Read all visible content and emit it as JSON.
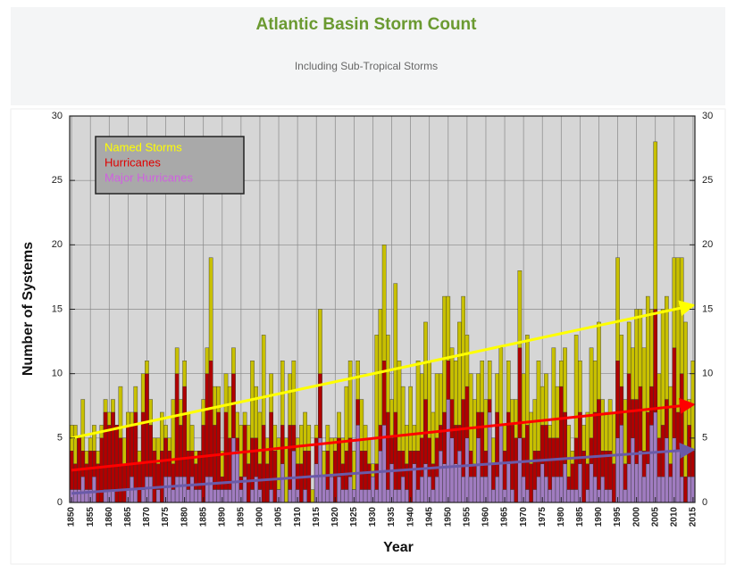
{
  "chart_data": {
    "type": "bar",
    "title": "Atlantic Basin Storm Count",
    "subtitle": "Including Sub-Tropical Storms",
    "x_label": "Year",
    "y_label": "Number of Systems",
    "x": [
      1850,
      1851,
      1852,
      1853,
      1854,
      1855,
      1856,
      1857,
      1858,
      1859,
      1860,
      1861,
      1862,
      1863,
      1864,
      1865,
      1866,
      1867,
      1868,
      1869,
      1870,
      1871,
      1872,
      1873,
      1874,
      1875,
      1876,
      1877,
      1878,
      1879,
      1880,
      1881,
      1882,
      1883,
      1884,
      1885,
      1886,
      1887,
      1888,
      1889,
      1890,
      1891,
      1892,
      1893,
      1894,
      1895,
      1896,
      1897,
      1898,
      1899,
      1900,
      1901,
      1902,
      1903,
      1904,
      1905,
      1906,
      1907,
      1908,
      1909,
      1910,
      1911,
      1912,
      1913,
      1914,
      1915,
      1916,
      1917,
      1918,
      1919,
      1920,
      1921,
      1922,
      1923,
      1924,
      1925,
      1926,
      1927,
      1928,
      1929,
      1930,
      1931,
      1932,
      1933,
      1934,
      1935,
      1936,
      1937,
      1938,
      1939,
      1940,
      1941,
      1942,
      1943,
      1944,
      1945,
      1946,
      1947,
      1948,
      1949,
      1950,
      1951,
      1952,
      1953,
      1954,
      1955,
      1956,
      1957,
      1958,
      1959,
      1960,
      1961,
      1962,
      1963,
      1964,
      1965,
      1966,
      1967,
      1968,
      1969,
      1970,
      1971,
      1972,
      1973,
      1974,
      1975,
      1976,
      1977,
      1978,
      1979,
      1980,
      1981,
      1982,
      1983,
      1984,
      1985,
      1986,
      1987,
      1988,
      1989,
      1990,
      1991,
      1992,
      1993,
      1994,
      1995,
      1996,
      1997,
      1998,
      1999,
      2000,
      2001,
      2002,
      2003,
      2004,
      2005,
      2006,
      2007,
      2008,
      2009,
      2010,
      2011,
      2012,
      2013,
      2014,
      2015
    ],
    "series": [
      {
        "name": "Named Storms",
        "color": "#c8c000",
        "text_color": "#ffff00",
        "values": [
          6,
          6,
          5,
          8,
          4,
          5,
          6,
          4,
          6,
          8,
          7,
          8,
          6,
          9,
          5,
          7,
          7,
          9,
          4,
          10,
          11,
          8,
          5,
          5,
          7,
          6,
          5,
          8,
          12,
          8,
          11,
          7,
          6,
          4,
          4,
          8,
          12,
          19,
          9,
          9,
          4,
          10,
          9,
          12,
          7,
          6,
          7,
          6,
          11,
          9,
          7,
          13,
          5,
          10,
          6,
          5,
          11,
          5,
          10,
          11,
          5,
          6,
          7,
          6,
          1,
          6,
          15,
          4,
          6,
          5,
          5,
          7,
          5,
          9,
          11,
          4,
          11,
          8,
          6,
          5,
          3,
          13,
          15,
          20,
          13,
          8,
          17,
          11,
          9,
          6,
          9,
          6,
          11,
          10,
          14,
          11,
          7,
          10,
          10,
          16,
          16,
          12,
          11,
          14,
          16,
          13,
          10,
          8,
          10,
          11,
          8,
          11,
          5,
          10,
          12,
          6,
          11,
          8,
          8,
          18,
          10,
          13,
          7,
          8,
          11,
          9,
          10,
          6,
          12,
          9,
          11,
          12,
          6,
          4,
          13,
          11,
          6,
          7,
          12,
          11,
          14,
          8,
          7,
          8,
          7,
          19,
          13,
          8,
          14,
          12,
          15,
          15,
          12,
          16,
          15,
          28,
          10,
          15,
          16,
          9,
          19,
          19,
          19,
          14,
          8,
          11
        ]
      },
      {
        "name": "Hurricanes",
        "color": "#b00000",
        "text_color": "#e00000",
        "values": [
          4,
          3,
          5,
          4,
          3,
          4,
          4,
          3,
          5,
          7,
          6,
          7,
          6,
          5,
          3,
          6,
          6,
          7,
          3,
          7,
          10,
          6,
          4,
          3,
          4,
          5,
          4,
          3,
          10,
          6,
          9,
          4,
          4,
          3,
          4,
          6,
          10,
          11,
          6,
          7,
          2,
          7,
          5,
          10,
          5,
          2,
          6,
          3,
          5,
          5,
          3,
          6,
          3,
          7,
          4,
          1,
          6,
          0,
          6,
          6,
          3,
          3,
          4,
          4,
          0,
          5,
          10,
          2,
          4,
          2,
          4,
          5,
          3,
          4,
          5,
          1,
          8,
          4,
          4,
          3,
          2,
          3,
          6,
          11,
          7,
          5,
          7,
          4,
          4,
          3,
          4,
          4,
          4,
          5,
          8,
          5,
          3,
          5,
          6,
          7,
          11,
          8,
          6,
          6,
          8,
          9,
          4,
          3,
          7,
          7,
          4,
          8,
          3,
          7,
          6,
          4,
          7,
          6,
          5,
          12,
          5,
          6,
          3,
          4,
          4,
          6,
          6,
          5,
          5,
          5,
          9,
          7,
          2,
          3,
          5,
          7,
          4,
          3,
          5,
          7,
          8,
          4,
          4,
          4,
          3,
          11,
          9,
          3,
          10,
          8,
          8,
          9,
          4,
          7,
          9,
          15,
          5,
          6,
          8,
          3,
          12,
          7,
          10,
          2,
          6,
          4
        ]
      },
      {
        "name": "Major Hurricanes",
        "color": "#a07cc0",
        "text_color": "#d060e0",
        "values": [
          1,
          1,
          1,
          2,
          1,
          1,
          2,
          0,
          0,
          1,
          1,
          1,
          0,
          0,
          0,
          1,
          2,
          1,
          0,
          1,
          2,
          2,
          0,
          1,
          0,
          2,
          2,
          1,
          2,
          2,
          2,
          1,
          2,
          1,
          1,
          0,
          2,
          2,
          1,
          1,
          1,
          1,
          1,
          5,
          4,
          1,
          2,
          0,
          1,
          2,
          1,
          0,
          0,
          1,
          0,
          1,
          3,
          0,
          1,
          4,
          1,
          0,
          1,
          0,
          0,
          3,
          5,
          2,
          1,
          2,
          0,
          2,
          1,
          1,
          2,
          1,
          6,
          1,
          1,
          1,
          2,
          1,
          4,
          6,
          1,
          3,
          1,
          1,
          2,
          1,
          0,
          3,
          1,
          2,
          3,
          2,
          1,
          2,
          4,
          3,
          8,
          5,
          3,
          4,
          2,
          5,
          2,
          2,
          5,
          2,
          2,
          7,
          1,
          2,
          6,
          1,
          3,
          1,
          0,
          5,
          2,
          1,
          0,
          1,
          2,
          3,
          2,
          1,
          2,
          2,
          2,
          3,
          1,
          1,
          1,
          3,
          0,
          1,
          3,
          2,
          1,
          2,
          1,
          1,
          0,
          5,
          6,
          1,
          3,
          5,
          3,
          4,
          2,
          3,
          6,
          7,
          2,
          2,
          5,
          2,
          5,
          4,
          2,
          0,
          2,
          2
        ]
      }
    ],
    "trend_x": [
      1850,
      2015
    ],
    "trends": [
      {
        "color": "#ffff00",
        "values": [
          5,
          15.3
        ]
      },
      {
        "color": "#ff0000",
        "values": [
          2.5,
          7.6
        ]
      },
      {
        "color": "#6a5aa8",
        "values": [
          0.7,
          4.1
        ]
      }
    ],
    "xlim": [
      1849.5,
      2015.5
    ],
    "xticks": [
      1850,
      1855,
      1860,
      1865,
      1870,
      1875,
      1880,
      1885,
      1890,
      1895,
      1900,
      1905,
      1910,
      1915,
      1920,
      1925,
      1930,
      1935,
      1940,
      1945,
      1950,
      1955,
      1960,
      1965,
      1970,
      1975,
      1980,
      1985,
      1990,
      1995,
      2000,
      2005,
      2010,
      2015
    ],
    "ylim": [
      0,
      30
    ],
    "yticks": [
      0,
      5,
      10,
      15,
      20,
      25,
      30
    ],
    "grid": true,
    "legend": "top-left"
  }
}
